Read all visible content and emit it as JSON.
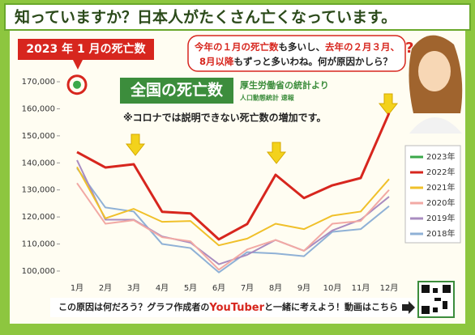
{
  "header": {
    "title": "知っていますか？日本人がたくさん亡くなっています。"
  },
  "callout": "2023 年 1 月の死亡数",
  "speech": {
    "parts": [
      "今年の１月の死亡数",
      "も多いし、",
      "去年の２月３月、",
      "8月以降",
      "もずっと多いわね。何が原因かしら？"
    ]
  },
  "footer": {
    "parts": [
      "この原因は何だろう？グラフ作成者の",
      "YouTuber",
      "と一緒に考えよう！動画はこちら"
    ]
  },
  "chart_data": {
    "type": "line",
    "title": "全国の死亡数",
    "subtitle": "厚生労働省の統計より",
    "source": "人口動態統計 速報",
    "annotation": "※コロナでは説明できない死亡数の増加です。",
    "categories": [
      "1月",
      "2月",
      "3月",
      "4月",
      "5月",
      "6月",
      "7月",
      "8月",
      "9月",
      "10月",
      "11月",
      "12月"
    ],
    "series": [
      {
        "name": "2023年",
        "color": "#3aa84a",
        "values": [
          168900,
          null,
          null,
          null,
          null,
          null,
          null,
          null,
          null,
          null,
          null,
          null
        ]
      },
      {
        "name": "2022年",
        "color": "#d7261e",
        "values": [
          144000,
          138300,
          139500,
          121900,
          121300,
          111700,
          117400,
          135600,
          127000,
          131700,
          134400,
          158400
        ]
      },
      {
        "name": "2021年",
        "color": "#f0c02a",
        "values": [
          138500,
          119500,
          123000,
          118200,
          118500,
          109500,
          112000,
          117500,
          115500,
          120500,
          122000,
          134000
        ]
      },
      {
        "name": "2020年",
        "color": "#f2a9a4",
        "values": [
          132500,
          117500,
          118800,
          112500,
          111000,
          100500,
          108000,
          111500,
          107500,
          117500,
          118500,
          130000
        ]
      },
      {
        "name": "2019年",
        "color": "#a98cc0",
        "values": [
          141000,
          119000,
          119000,
          112800,
          110500,
          102500,
          106000,
          111500,
          107500,
          115000,
          119000,
          127500
        ]
      },
      {
        "name": "2018年",
        "color": "#8fb1d6",
        "values": [
          138000,
          123500,
          122000,
          110000,
          108500,
          99500,
          107000,
          106500,
          105500,
          114500,
          115500,
          124000
        ]
      }
    ],
    "ylim": [
      95500,
      173300
    ],
    "yticks": [
      {
        "value": 100000,
        "label": "100,000"
      },
      {
        "value": 110000,
        "label": "110,000"
      },
      {
        "value": 120000,
        "label": "120,000"
      },
      {
        "value": 130000,
        "label": "130,000"
      },
      {
        "value": 140000,
        "label": "140,000"
      },
      {
        "value": 150000,
        "label": "150,000"
      },
      {
        "value": 160000,
        "label": "160,000"
      },
      {
        "value": 170000,
        "label": "170,000"
      }
    ],
    "grid": false,
    "legend": "right"
  }
}
